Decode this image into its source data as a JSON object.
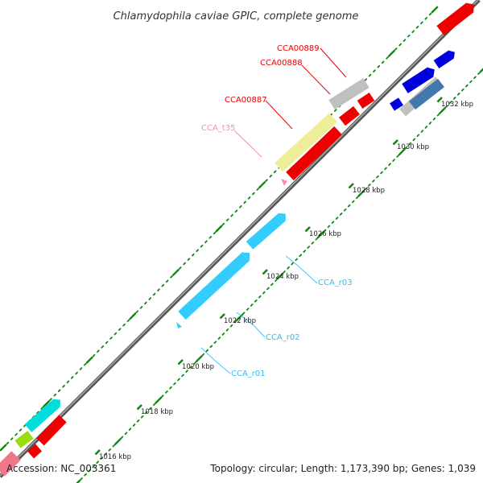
{
  "title": "Chlamydophila caviae GPIC, complete genome",
  "footer": {
    "accession": "Accession: NC_003361",
    "summary": "Topology: circular; Length: 1,173,390 bp; Genes: 1,039"
  },
  "ticks": [
    "1016 kbp",
    "1018 kbp",
    "1020 kbp",
    "1022 kbp",
    "1024 kbp",
    "1026 kbp",
    "1028 kbp",
    "1030 kbp",
    "1032 kbp"
  ],
  "labels": [
    {
      "text": "CCA00889",
      "color": "#ee0000"
    },
    {
      "text": "CCA00888",
      "color": "#ee0000"
    },
    {
      "text": "CCA00887",
      "color": "#ee0000"
    },
    {
      "text": "CCA_t35",
      "color": "#ff88bb"
    },
    {
      "text": "CCA_r03",
      "color": "#33bbee"
    },
    {
      "text": "CCA_r02",
      "color": "#33bbee"
    },
    {
      "text": "CCA_r01",
      "color": "#33bbee"
    }
  ],
  "colors": {
    "axis": "#888888",
    "tick": "#118811",
    "cds": "#ee0000",
    "rrna": "#33ccff",
    "trna": "#ff88bb",
    "misc": "#c0c0c0",
    "pseudo": "#eeee99",
    "blue": "#0000dd",
    "steel": "#4477aa",
    "cyan": "#00dddd",
    "lime": "#99dd11",
    "pink": "#ee7788"
  }
}
